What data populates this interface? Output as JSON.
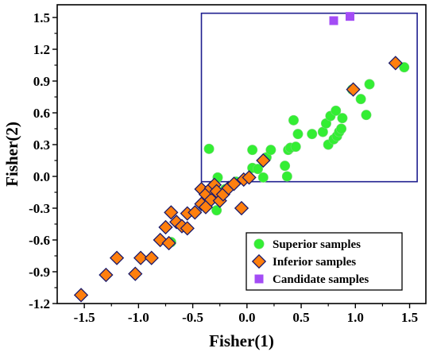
{
  "chart_data": {
    "type": "scatter",
    "xlabel": "Fisher(1)",
    "ylabel": "Fisher(2)",
    "xlim": [
      -1.75,
      1.65
    ],
    "ylim": [
      -1.2,
      1.62
    ],
    "xticks": [
      "-1.5",
      "-1.0",
      "-0.5",
      "0.0",
      "0.5",
      "1.0",
      "1.5"
    ],
    "xtick_values": [
      -1.5,
      -1.0,
      -0.5,
      0.0,
      0.5,
      1.0,
      1.5
    ],
    "yticks": [
      "-1.2",
      "-0.9",
      "-0.6",
      "-0.3",
      "0.0",
      "0.3",
      "0.6",
      "0.9",
      "1.2",
      "1.5"
    ],
    "ytick_values": [
      -1.2,
      -0.9,
      -0.6,
      -0.3,
      0.0,
      0.3,
      0.6,
      0.9,
      1.2,
      1.5
    ],
    "grid": false,
    "legend_position": "bottom-right",
    "region_box": {
      "x0": -0.42,
      "x1": 1.57,
      "y0": -0.05,
      "y1": 1.54,
      "color": "#1f1f8f"
    },
    "series": [
      {
        "name": "Superior samples",
        "marker": "circle",
        "color": "#33ee33",
        "points": [
          [
            -0.7,
            -0.62
          ],
          [
            -0.33,
            -0.16
          ],
          [
            -0.28,
            -0.32
          ],
          [
            -0.25,
            -0.18
          ],
          [
            -0.15,
            -0.09
          ],
          [
            -0.1,
            -0.05
          ],
          [
            -0.2,
            -0.12
          ],
          [
            -0.35,
            0.26
          ],
          [
            -0.27,
            -0.01
          ],
          [
            0.05,
            0.25
          ],
          [
            0.05,
            0.08
          ],
          [
            0.1,
            0.07
          ],
          [
            0.15,
            -0.01
          ],
          [
            0.18,
            0.18
          ],
          [
            0.22,
            0.25
          ],
          [
            0.35,
            0.1
          ],
          [
            0.37,
            0.0
          ],
          [
            0.38,
            0.25
          ],
          [
            0.4,
            0.27
          ],
          [
            0.43,
            0.53
          ],
          [
            0.45,
            0.28
          ],
          [
            0.47,
            0.4
          ],
          [
            0.6,
            0.4
          ],
          [
            0.7,
            0.42
          ],
          [
            0.73,
            0.5
          ],
          [
            0.75,
            0.3
          ],
          [
            0.77,
            0.57
          ],
          [
            0.8,
            0.35
          ],
          [
            0.82,
            0.62
          ],
          [
            0.83,
            0.38
          ],
          [
            0.85,
            0.42
          ],
          [
            0.87,
            0.45
          ],
          [
            0.88,
            0.55
          ],
          [
            0.97,
            0.82
          ],
          [
            1.05,
            0.73
          ],
          [
            1.1,
            0.58
          ],
          [
            1.13,
            0.87
          ],
          [
            1.45,
            1.03
          ]
        ]
      },
      {
        "name": "Inferior samples",
        "marker": "diamond",
        "color": "#ff7f0e",
        "points": [
          [
            -1.53,
            -1.12
          ],
          [
            -1.3,
            -0.93
          ],
          [
            -1.2,
            -0.77
          ],
          [
            -1.03,
            -0.92
          ],
          [
            -0.98,
            -0.77
          ],
          [
            -0.88,
            -0.77
          ],
          [
            -0.8,
            -0.6
          ],
          [
            -0.75,
            -0.48
          ],
          [
            -0.72,
            -0.63
          ],
          [
            -0.7,
            -0.34
          ],
          [
            -0.65,
            -0.43
          ],
          [
            -0.6,
            -0.47
          ],
          [
            -0.55,
            -0.35
          ],
          [
            -0.55,
            -0.49
          ],
          [
            -0.48,
            -0.34
          ],
          [
            -0.42,
            -0.26
          ],
          [
            -0.42,
            -0.12
          ],
          [
            -0.38,
            -0.17
          ],
          [
            -0.38,
            -0.29
          ],
          [
            -0.33,
            -0.22
          ],
          [
            -0.33,
            -0.11
          ],
          [
            -0.3,
            -0.08
          ],
          [
            -0.28,
            -0.14
          ],
          [
            -0.25,
            -0.23
          ],
          [
            -0.22,
            -0.17
          ],
          [
            -0.17,
            -0.11
          ],
          [
            -0.12,
            -0.07
          ],
          [
            -0.05,
            -0.3
          ],
          [
            -0.03,
            -0.03
          ],
          [
            0.02,
            -0.01
          ],
          [
            0.15,
            0.15
          ],
          [
            0.98,
            0.82
          ],
          [
            1.37,
            1.07
          ]
        ]
      },
      {
        "name": "Candidate samples",
        "marker": "square",
        "color": "#a34cf5",
        "points": [
          [
            0.8,
            1.47
          ],
          [
            0.95,
            1.51
          ]
        ]
      }
    ]
  }
}
